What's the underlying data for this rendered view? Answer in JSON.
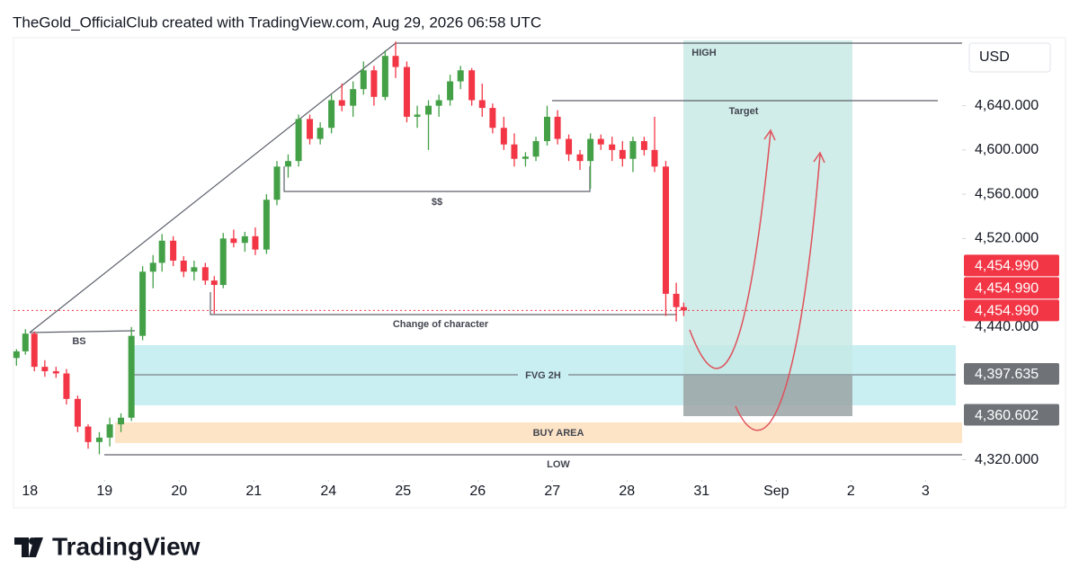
{
  "header": {
    "title": "TheGold_OfficialClub created with TradingView.com, Aug 29, 2026 06:58 UTC"
  },
  "footer": {
    "logo": "TradingView"
  },
  "chart_data": {
    "type": "candlestick",
    "currency": "USD",
    "up_color": "#43a047",
    "down_color": "#f23645",
    "x": [
      -0.18,
      -0.06,
      0.06,
      0.2,
      0.35,
      0.49,
      0.64,
      0.78,
      0.93,
      1.07,
      1.22,
      1.36,
      1.51,
      1.65,
      1.77,
      1.92,
      2.06,
      2.2,
      2.35,
      2.47,
      2.59,
      2.73,
      2.88,
      3.02,
      3.17,
      3.31,
      3.46,
      3.6,
      3.75,
      3.89,
      4.04,
      4.18,
      4.33,
      4.47,
      4.61,
      4.76,
      4.9,
      5.05,
      5.19,
      5.34,
      5.48,
      5.63,
      5.77,
      5.92,
      6.06,
      6.2,
      6.35,
      6.49,
      6.64,
      6.78,
      6.93,
      7.07,
      7.22,
      7.37,
      7.51,
      7.65,
      7.8,
      7.94,
      8.08,
      8.23,
      8.37,
      8.52,
      8.66,
      8.76
    ],
    "open": [
      4412,
      4418,
      4434,
      4404,
      4400,
      4398,
      4375,
      4350,
      4336,
      4340,
      4352,
      4358,
      4432,
      4490,
      4498,
      4518,
      4500,
      4490,
      4494,
      4482,
      4478,
      4520,
      4516,
      4522,
      4510,
      4555,
      4585,
      4590,
      4628,
      4610,
      4620,
      4645,
      4640,
      4655,
      4672,
      4648,
      4685,
      4675,
      4630,
      4632,
      4640,
      4645,
      4662,
      4672,
      4645,
      4638,
      4620,
      4605,
      4592,
      4594,
      4608,
      4630,
      4610,
      4596,
      4590,
      4610,
      4605,
      4600,
      4592,
      4608,
      4600,
      4585,
      4470,
      4458
    ],
    "high": [
      4420,
      4438,
      4436,
      4410,
      4404,
      4402,
      4378,
      4352,
      4345,
      4358,
      4362,
      4440,
      4495,
      4505,
      4524,
      4522,
      4504,
      4500,
      4498,
      4486,
      4525,
      4528,
      4526,
      4530,
      4560,
      4590,
      4596,
      4632,
      4632,
      4625,
      4650,
      4660,
      4662,
      4680,
      4676,
      4690,
      4698,
      4680,
      4640,
      4645,
      4650,
      4668,
      4676,
      4674,
      4660,
      4642,
      4630,
      4615,
      4598,
      4612,
      4640,
      4636,
      4614,
      4600,
      4615,
      4614,
      4612,
      4608,
      4612,
      4612,
      4630,
      4590,
      4480,
      4462
    ],
    "low": [
      4405,
      4415,
      4400,
      4395,
      4394,
      4370,
      4345,
      4330,
      4325,
      4332,
      4345,
      4355,
      4428,
      4475,
      4490,
      4495,
      4485,
      4482,
      4478,
      4452,
      4475,
      4512,
      4508,
      4505,
      4506,
      4550,
      4575,
      4585,
      4605,
      4605,
      4615,
      4635,
      4630,
      4650,
      4640,
      4645,
      4665,
      4625,
      4620,
      4600,
      4630,
      4640,
      4655,
      4640,
      4630,
      4615,
      4600,
      4585,
      4585,
      4590,
      4604,
      4605,
      4590,
      4582,
      4565,
      4600,
      4590,
      4585,
      4580,
      4595,
      4580,
      4450,
      4445,
      4450
    ],
    "close": [
      4418,
      4434,
      4404,
      4400,
      4398,
      4375,
      4350,
      4336,
      4340,
      4352,
      4358,
      4432,
      4490,
      4498,
      4518,
      4500,
      4490,
      4494,
      4482,
      4478,
      4520,
      4516,
      4522,
      4510,
      4555,
      4585,
      4590,
      4628,
      4610,
      4620,
      4645,
      4640,
      4655,
      4672,
      4648,
      4685,
      4675,
      4630,
      4632,
      4640,
      4645,
      4662,
      4672,
      4645,
      4638,
      4620,
      4605,
      4592,
      4594,
      4608,
      4630,
      4610,
      4596,
      4590,
      4610,
      4605,
      4600,
      4592,
      4608,
      4600,
      4585,
      4470,
      4458,
      4454.99
    ],
    "xlim": [
      -0.22,
      12.49
    ],
    "xticks": [
      {
        "value": 0,
        "label": "18"
      },
      {
        "value": 1,
        "label": "19"
      },
      {
        "value": 2,
        "label": "20"
      },
      {
        "value": 3,
        "label": "21"
      },
      {
        "value": 4,
        "label": "24"
      },
      {
        "value": 5,
        "label": "25"
      },
      {
        "value": 6,
        "label": "26"
      },
      {
        "value": 7,
        "label": "27"
      },
      {
        "value": 8,
        "label": "28"
      },
      {
        "value": 9,
        "label": "31"
      },
      {
        "value": 10,
        "label": "Sep"
      },
      {
        "value": 11,
        "label": "2"
      },
      {
        "value": 12,
        "label": "3"
      }
    ],
    "ylim": [
      4305,
      4699
    ],
    "yticks": [
      {
        "value": 4320,
        "label": "4,320.000"
      },
      {
        "value": 4440,
        "label": "4,440.000"
      },
      {
        "value": 4520,
        "label": "4,520.000"
      },
      {
        "value": 4560,
        "label": "4,560.000"
      },
      {
        "value": 4600,
        "label": "4,600.000"
      },
      {
        "value": 4640,
        "label": "4,640.000"
      }
    ],
    "price_labels": [
      {
        "value": 4454.99,
        "label": "4,454.990",
        "color": "#f23645"
      },
      {
        "value": 4454.99,
        "label": "4,454.990",
        "color": "#f23645"
      },
      {
        "value": 4454.99,
        "label": "4,454.990",
        "color": "#f23645"
      },
      {
        "value": 4397.635,
        "label": "4,397.635",
        "color": "#6f7378"
      },
      {
        "value": 4360.602,
        "label": "4,360.602",
        "color": "#6f7378"
      }
    ],
    "annotations": {
      "high": "HIGH",
      "target": "Target",
      "liquidity": "$$",
      "choch": "Change of character",
      "bs": "BS",
      "fvg": "FVG 2H",
      "buy": "BUY AREA",
      "low": "LOW"
    }
  }
}
